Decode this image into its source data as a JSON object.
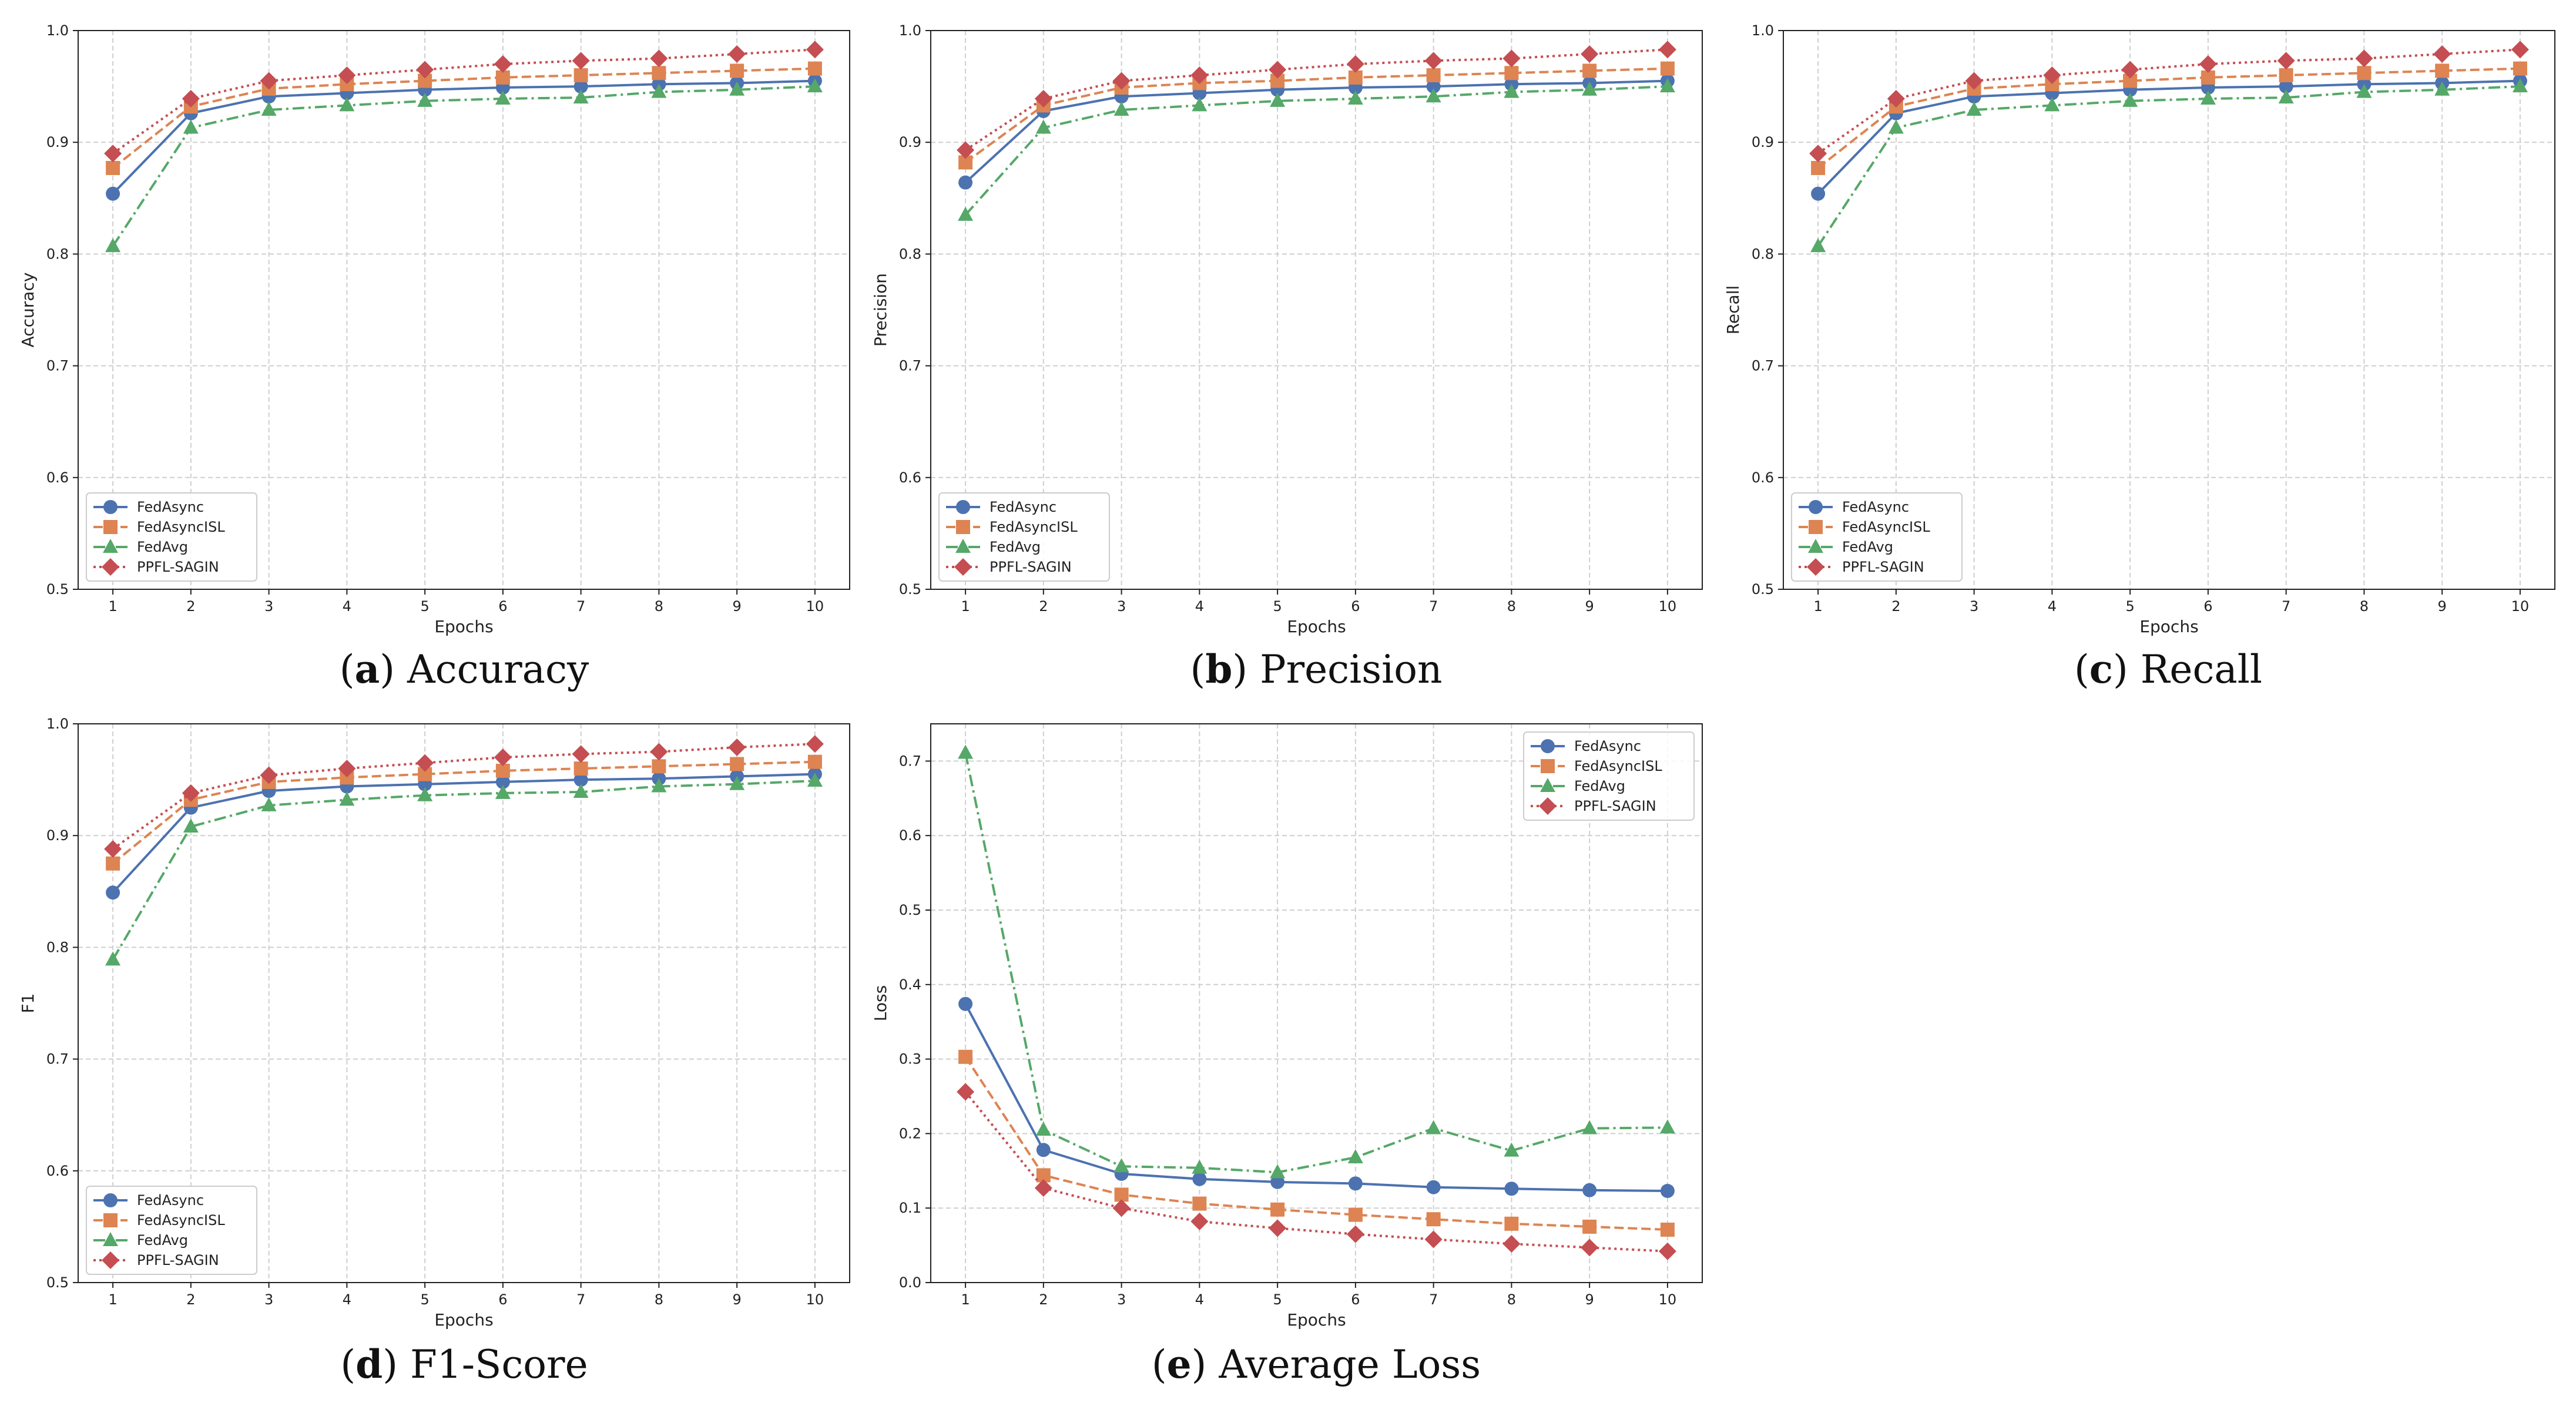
{
  "legend": {
    "fedasync": "FedAsync",
    "fedasyncisl": "FedAsyncISL",
    "fedavg": "FedAvg",
    "ppfl": "PPFL-SAGIN"
  },
  "colors": {
    "fedasync": "#4c72b0",
    "fedasyncisl": "#dd8452",
    "fedavg": "#55a868",
    "ppfl": "#c44e52"
  },
  "chart_data": [
    {
      "type": "line",
      "id": "accuracy",
      "caption_letter": "a",
      "caption_text": "Accuracy",
      "xlabel": "Epochs",
      "ylabel": "Accuracy",
      "x": [
        1,
        2,
        3,
        4,
        5,
        6,
        7,
        8,
        9,
        10
      ],
      "xticks": [
        "1",
        "2",
        "3",
        "4",
        "5",
        "6",
        "7",
        "8",
        "9",
        "10"
      ],
      "ylim": [
        0.5,
        1.0
      ],
      "yticks": [
        "0.5",
        "0.6",
        "0.7",
        "0.8",
        "0.9",
        "1.0"
      ],
      "legend_position": "lower-left",
      "grid": true,
      "series": [
        {
          "key": "fedasync",
          "name": "FedAsync",
          "values": [
            0.854,
            0.926,
            0.941,
            0.944,
            0.947,
            0.949,
            0.95,
            0.952,
            0.953,
            0.955
          ]
        },
        {
          "key": "fedasyncisl",
          "name": "FedAsyncISL",
          "values": [
            0.877,
            0.932,
            0.948,
            0.952,
            0.955,
            0.958,
            0.96,
            0.962,
            0.964,
            0.966
          ]
        },
        {
          "key": "fedavg",
          "name": "FedAvg",
          "values": [
            0.807,
            0.913,
            0.929,
            0.933,
            0.937,
            0.939,
            0.94,
            0.945,
            0.947,
            0.95
          ]
        },
        {
          "key": "ppfl",
          "name": "PPFL-SAGIN",
          "values": [
            0.89,
            0.939,
            0.955,
            0.96,
            0.965,
            0.97,
            0.973,
            0.975,
            0.979,
            0.983
          ]
        }
      ]
    },
    {
      "type": "line",
      "id": "precision",
      "caption_letter": "b",
      "caption_text": "Precision",
      "xlabel": "Epochs",
      "ylabel": "Precision",
      "x": [
        1,
        2,
        3,
        4,
        5,
        6,
        7,
        8,
        9,
        10
      ],
      "xticks": [
        "1",
        "2",
        "3",
        "4",
        "5",
        "6",
        "7",
        "8",
        "9",
        "10"
      ],
      "ylim": [
        0.5,
        1.0
      ],
      "yticks": [
        "0.5",
        "0.6",
        "0.7",
        "0.8",
        "0.9",
        "1.0"
      ],
      "legend_position": "lower-left",
      "grid": true,
      "series": [
        {
          "key": "fedasync",
          "name": "FedAsync",
          "values": [
            0.864,
            0.928,
            0.941,
            0.944,
            0.947,
            0.949,
            0.95,
            0.952,
            0.953,
            0.955
          ]
        },
        {
          "key": "fedasyncisl",
          "name": "FedAsyncISL",
          "values": [
            0.882,
            0.933,
            0.949,
            0.953,
            0.955,
            0.958,
            0.96,
            0.962,
            0.964,
            0.966
          ]
        },
        {
          "key": "fedavg",
          "name": "FedAvg",
          "values": [
            0.835,
            0.913,
            0.929,
            0.933,
            0.937,
            0.939,
            0.941,
            0.945,
            0.947,
            0.95
          ]
        },
        {
          "key": "ppfl",
          "name": "PPFL-SAGIN",
          "values": [
            0.893,
            0.939,
            0.955,
            0.96,
            0.965,
            0.97,
            0.973,
            0.975,
            0.979,
            0.983
          ]
        }
      ]
    },
    {
      "type": "line",
      "id": "recall",
      "caption_letter": "c",
      "caption_text": "Recall",
      "xlabel": "Epochs",
      "ylabel": "Recall",
      "x": [
        1,
        2,
        3,
        4,
        5,
        6,
        7,
        8,
        9,
        10
      ],
      "xticks": [
        "1",
        "2",
        "3",
        "4",
        "5",
        "6",
        "7",
        "8",
        "9",
        "10"
      ],
      "ylim": [
        0.5,
        1.0
      ],
      "yticks": [
        "0.5",
        "0.6",
        "0.7",
        "0.8",
        "0.9",
        "1.0"
      ],
      "legend_position": "lower-left",
      "grid": true,
      "series": [
        {
          "key": "fedasync",
          "name": "FedAsync",
          "values": [
            0.854,
            0.926,
            0.941,
            0.944,
            0.947,
            0.949,
            0.95,
            0.952,
            0.953,
            0.955
          ]
        },
        {
          "key": "fedasyncisl",
          "name": "FedAsyncISL",
          "values": [
            0.877,
            0.932,
            0.948,
            0.952,
            0.955,
            0.958,
            0.96,
            0.962,
            0.964,
            0.966
          ]
        },
        {
          "key": "fedavg",
          "name": "FedAvg",
          "values": [
            0.807,
            0.913,
            0.929,
            0.933,
            0.937,
            0.939,
            0.94,
            0.945,
            0.947,
            0.95
          ]
        },
        {
          "key": "ppfl",
          "name": "PPFL-SAGIN",
          "values": [
            0.89,
            0.939,
            0.955,
            0.96,
            0.965,
            0.97,
            0.973,
            0.975,
            0.979,
            0.983
          ]
        }
      ]
    },
    {
      "type": "line",
      "id": "f1",
      "caption_letter": "d",
      "caption_text": "F1-Score",
      "xlabel": "Epochs",
      "ylabel": "F1",
      "x": [
        1,
        2,
        3,
        4,
        5,
        6,
        7,
        8,
        9,
        10
      ],
      "xticks": [
        "1",
        "2",
        "3",
        "4",
        "5",
        "6",
        "7",
        "8",
        "9",
        "10"
      ],
      "ylim": [
        0.5,
        1.0
      ],
      "yticks": [
        "0.5",
        "0.6",
        "0.7",
        "0.8",
        "0.9",
        "1.0"
      ],
      "legend_position": "lower-left",
      "grid": true,
      "series": [
        {
          "key": "fedasync",
          "name": "FedAsync",
          "values": [
            0.849,
            0.925,
            0.94,
            0.944,
            0.946,
            0.948,
            0.95,
            0.951,
            0.953,
            0.955
          ]
        },
        {
          "key": "fedasyncisl",
          "name": "FedAsyncISL",
          "values": [
            0.875,
            0.932,
            0.948,
            0.952,
            0.955,
            0.958,
            0.96,
            0.962,
            0.964,
            0.966
          ]
        },
        {
          "key": "fedavg",
          "name": "FedAvg",
          "values": [
            0.789,
            0.908,
            0.927,
            0.932,
            0.936,
            0.938,
            0.939,
            0.944,
            0.946,
            0.949
          ]
        },
        {
          "key": "ppfl",
          "name": "PPFL-SAGIN",
          "values": [
            0.888,
            0.938,
            0.954,
            0.96,
            0.965,
            0.97,
            0.973,
            0.975,
            0.979,
            0.982
          ]
        }
      ]
    },
    {
      "type": "line",
      "id": "loss",
      "caption_letter": "e",
      "caption_text": "Average Loss",
      "xlabel": "Epochs",
      "ylabel": "Loss",
      "x": [
        1,
        2,
        3,
        4,
        5,
        6,
        7,
        8,
        9,
        10
      ],
      "xticks": [
        "1",
        "2",
        "3",
        "4",
        "5",
        "6",
        "7",
        "8",
        "9",
        "10"
      ],
      "ylim": [
        0.0,
        0.75
      ],
      "yticks": [
        "0.0",
        "0.1",
        "0.2",
        "0.3",
        "0.4",
        "0.5",
        "0.6",
        "0.7"
      ],
      "legend_position": "upper-right",
      "grid": true,
      "series": [
        {
          "key": "fedasync",
          "name": "FedAsync",
          "values": [
            0.374,
            0.178,
            0.146,
            0.139,
            0.135,
            0.133,
            0.128,
            0.126,
            0.124,
            0.123
          ]
        },
        {
          "key": "fedasyncisl",
          "name": "FedAsyncISL",
          "values": [
            0.303,
            0.144,
            0.118,
            0.106,
            0.098,
            0.091,
            0.085,
            0.079,
            0.075,
            0.071
          ]
        },
        {
          "key": "fedavg",
          "name": "FedAvg",
          "values": [
            0.711,
            0.205,
            0.156,
            0.154,
            0.148,
            0.168,
            0.207,
            0.177,
            0.207,
            0.208
          ]
        },
        {
          "key": "ppfl",
          "name": "PPFL-SAGIN",
          "values": [
            0.256,
            0.127,
            0.1,
            0.082,
            0.073,
            0.065,
            0.058,
            0.052,
            0.047,
            0.042
          ]
        }
      ]
    }
  ]
}
